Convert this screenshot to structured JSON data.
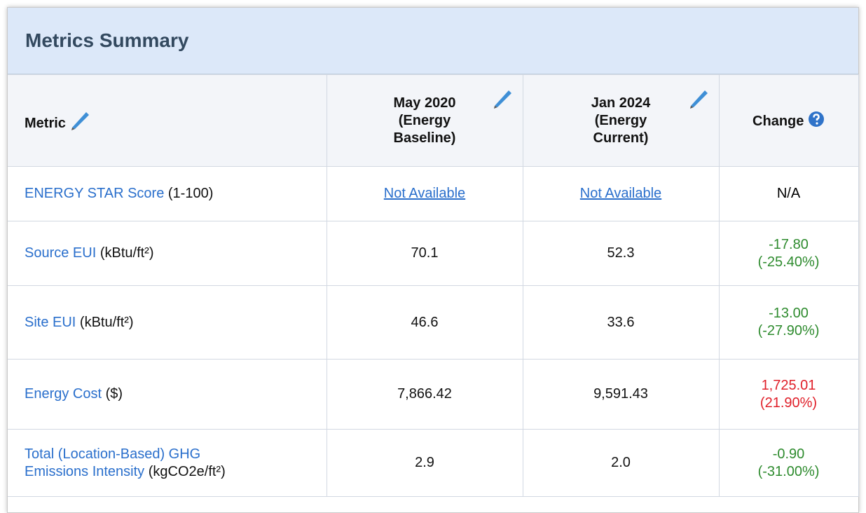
{
  "title": "Metrics Summary",
  "table": {
    "header": {
      "metric": "Metric",
      "baseline": [
        "May 2020",
        "(Energy",
        "Baseline)"
      ],
      "current": [
        "Jan 2024",
        "(Energy",
        "Current)"
      ],
      "change": "Change"
    },
    "rows": [
      {
        "metric": [
          "ENERGY STAR Score"
        ],
        "unit": "(1-100)",
        "baseline": "Not Available",
        "current": "Not Available",
        "change": [
          "N/A"
        ],
        "change_color": "#000000",
        "links": true
      },
      {
        "metric": [
          "Source EUI"
        ],
        "unit": "(kBtu/ft²)",
        "baseline": "70.1",
        "current": "52.3",
        "change": [
          "-17.80",
          "(-25.40%)"
        ],
        "change_color": "#2e8b2e"
      },
      {
        "metric": [
          "Site EUI"
        ],
        "unit": "(kBtu/ft²)",
        "baseline": "46.6",
        "current": "33.6",
        "change": [
          "-13.00",
          "(-27.90%)"
        ],
        "change_color": "#2e8b2e"
      },
      {
        "metric": [
          "Energy Cost"
        ],
        "unit": "($)",
        "baseline": "7,866.42",
        "current": "9,591.43",
        "change": [
          "1,725.01",
          "(21.90%)"
        ],
        "change_color": "#e0202a"
      },
      {
        "metric": [
          "Total (Location-Based) GHG",
          "Emissions Intensity"
        ],
        "unit": "(kgCO2e/ft²)",
        "baseline": "2.9",
        "current": "2.0",
        "change": [
          "-0.90",
          "(-31.00%)"
        ],
        "change_color": "#2e8b2e"
      }
    ]
  }
}
